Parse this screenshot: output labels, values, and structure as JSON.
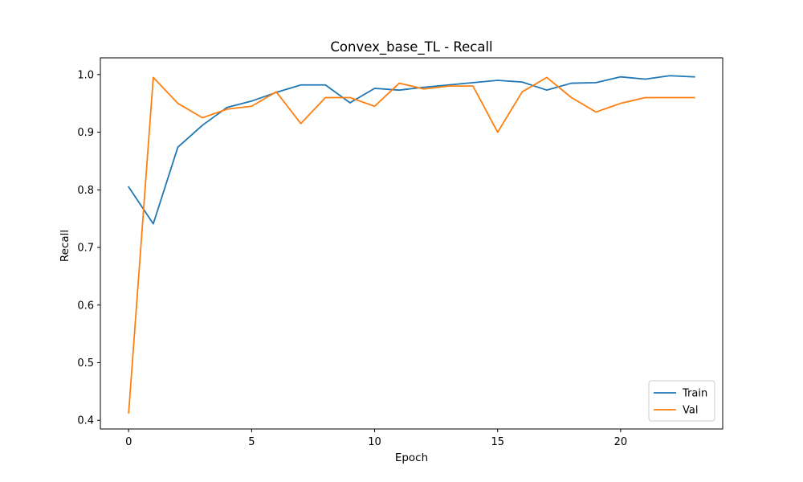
{
  "chart_data": {
    "type": "line",
    "title": "Convex_base_TL - Recall",
    "xlabel": "Epoch",
    "ylabel": "Recall",
    "x": [
      0,
      1,
      2,
      3,
      4,
      5,
      6,
      7,
      8,
      9,
      10,
      11,
      12,
      13,
      14,
      15,
      16,
      17,
      18,
      19,
      20,
      21,
      22,
      23
    ],
    "xlim": [
      -1.15,
      24.15
    ],
    "ylim": [
      0.385,
      1.029
    ],
    "xticks": [
      0,
      5,
      10,
      15,
      20
    ],
    "yticks": [
      0.4,
      0.5,
      0.6,
      0.7,
      0.8,
      0.9,
      1.0
    ],
    "grid": false,
    "legend_position": "lower-right",
    "series": [
      {
        "name": "Train",
        "color": "#1f77b4",
        "values": [
          0.805,
          0.741,
          0.874,
          0.912,
          0.943,
          0.954,
          0.969,
          0.982,
          0.982,
          0.951,
          0.976,
          0.973,
          0.978,
          0.982,
          0.986,
          0.99,
          0.987,
          0.973,
          0.985,
          0.986,
          0.996,
          0.992,
          0.998,
          0.996
        ]
      },
      {
        "name": "Val",
        "color": "#ff7f0e",
        "values": [
          0.413,
          0.995,
          0.95,
          0.925,
          0.94,
          0.945,
          0.97,
          0.915,
          0.96,
          0.96,
          0.945,
          0.985,
          0.975,
          0.98,
          0.98,
          0.9,
          0.97,
          0.995,
          0.96,
          0.935,
          0.95,
          0.96,
          0.96,
          0.96
        ]
      }
    ]
  }
}
